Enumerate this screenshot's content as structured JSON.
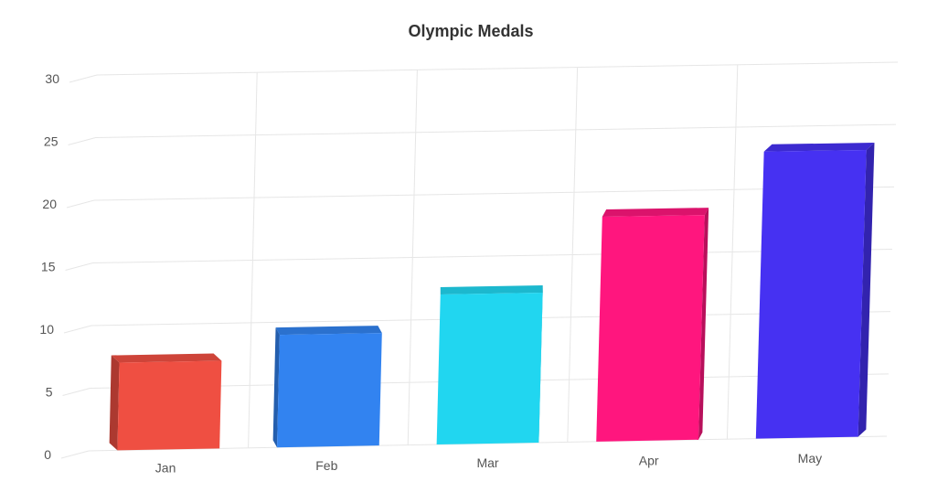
{
  "chart_data": {
    "type": "bar",
    "title": "Olympic Medals",
    "categories": [
      "Jan",
      "Feb",
      "Mar",
      "Apr",
      "May"
    ],
    "values": [
      7,
      9,
      12,
      18,
      23
    ],
    "colors": [
      "#ef4f42",
      "#3283f0",
      "#21d6f0",
      "#ff167e",
      "#4631f2"
    ],
    "xlabel": "",
    "ylabel": "",
    "ylim": [
      0,
      30
    ],
    "yticks": [
      "0",
      "5",
      "10",
      "15",
      "20",
      "25",
      "30"
    ],
    "grid": true,
    "legend": "none",
    "style": "3d"
  }
}
